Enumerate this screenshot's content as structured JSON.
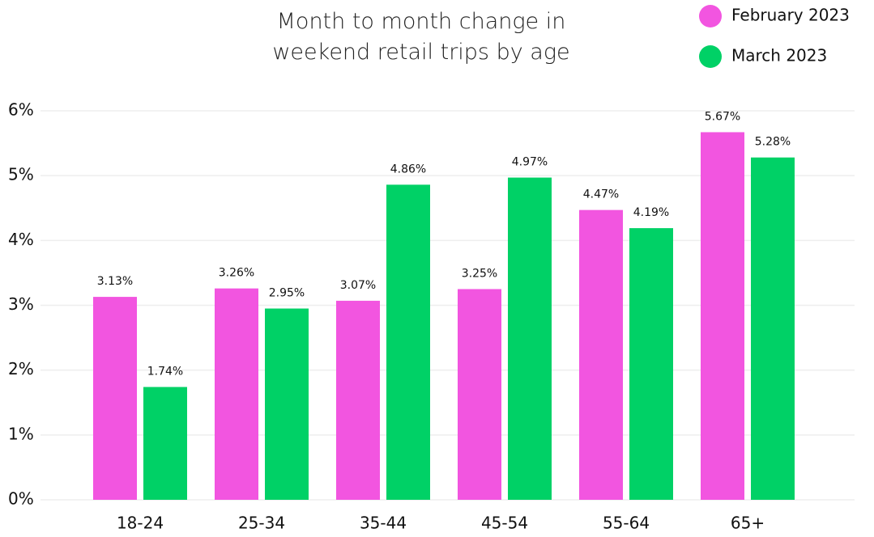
{
  "chart_data": {
    "type": "bar",
    "title": "Month to month change in weekend retail trips by age",
    "categories": [
      "18-24",
      "25-34",
      "35-44",
      "45-54",
      "55-64",
      "65+"
    ],
    "series": [
      {
        "name": "February 2023",
        "color": "#f255e0",
        "values": [
          3.13,
          3.26,
          3.07,
          3.25,
          4.47,
          5.67
        ],
        "value_labels": [
          "3.13%",
          "3.26%",
          "3.07%",
          "3.25%",
          "4.47%",
          "5.67%"
        ]
      },
      {
        "name": "March 2023",
        "color": "#00d166",
        "values": [
          1.74,
          2.95,
          4.86,
          4.97,
          4.19,
          5.28
        ],
        "value_labels": [
          "1.74%",
          "2.95%",
          "4.86%",
          "4.97%",
          "4.19%",
          "5.28%"
        ]
      }
    ],
    "ylim": [
      0,
      6
    ],
    "yticks": [
      {
        "value": 0,
        "label": "0%"
      },
      {
        "value": 1,
        "label": "1%"
      },
      {
        "value": 2,
        "label": "2%"
      },
      {
        "value": 3,
        "label": "3%"
      },
      {
        "value": 4,
        "label": "4%"
      },
      {
        "value": 5,
        "label": "5%"
      },
      {
        "value": 6,
        "label": "6%"
      }
    ],
    "grid": true,
    "legend": "top-right"
  }
}
